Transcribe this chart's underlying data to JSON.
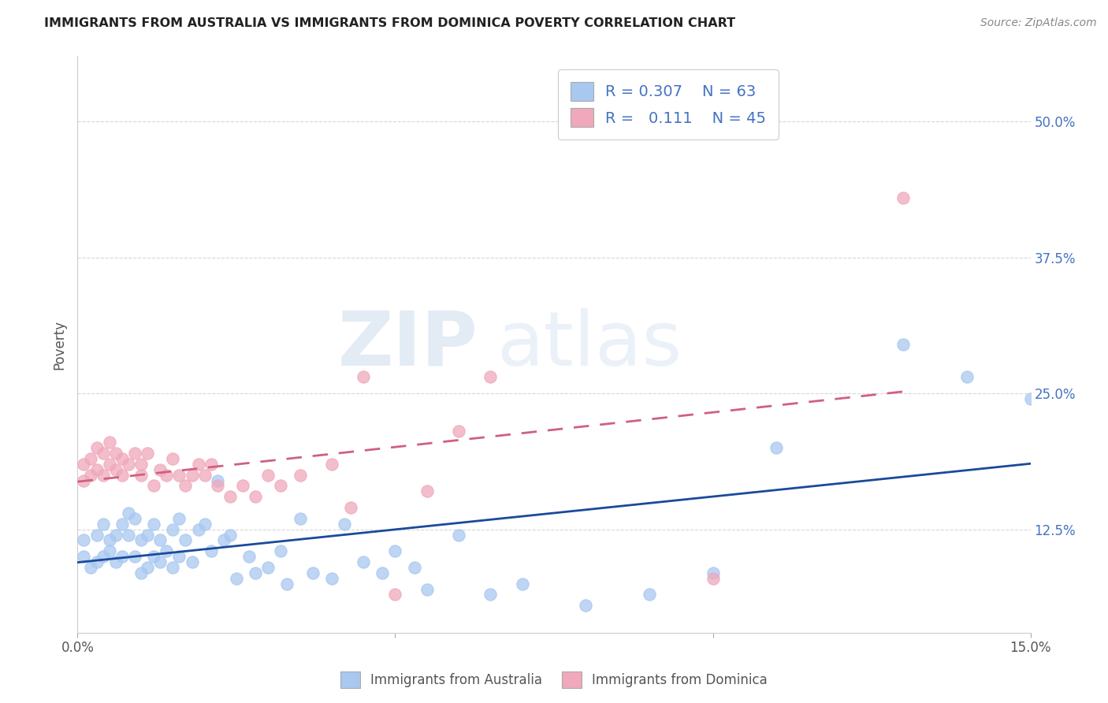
{
  "title": "IMMIGRANTS FROM AUSTRALIA VS IMMIGRANTS FROM DOMINICA POVERTY CORRELATION CHART",
  "source": "Source: ZipAtlas.com",
  "ylabel": "Poverty",
  "ytick_labels": [
    "12.5%",
    "25.0%",
    "37.5%",
    "50.0%"
  ],
  "ytick_values": [
    0.125,
    0.25,
    0.375,
    0.5
  ],
  "xlim": [
    0.0,
    0.15
  ],
  "ylim": [
    0.03,
    0.56
  ],
  "legend_R_australia": "0.307",
  "legend_N_australia": "63",
  "legend_R_dominica": "0.111",
  "legend_N_dominica": "45",
  "color_australia": "#a8c8f0",
  "color_dominica": "#f0a8bc",
  "line_color_australia": "#1a4a9a",
  "line_color_dominica": "#d06080",
  "watermark_zip": "ZIP",
  "watermark_atlas": "atlas",
  "australia_x": [
    0.001,
    0.001,
    0.002,
    0.003,
    0.003,
    0.004,
    0.004,
    0.005,
    0.005,
    0.006,
    0.006,
    0.007,
    0.007,
    0.008,
    0.008,
    0.009,
    0.009,
    0.01,
    0.01,
    0.011,
    0.011,
    0.012,
    0.012,
    0.013,
    0.013,
    0.014,
    0.015,
    0.015,
    0.016,
    0.016,
    0.017,
    0.018,
    0.019,
    0.02,
    0.021,
    0.022,
    0.023,
    0.024,
    0.025,
    0.027,
    0.028,
    0.03,
    0.032,
    0.033,
    0.035,
    0.037,
    0.04,
    0.042,
    0.045,
    0.048,
    0.05,
    0.053,
    0.055,
    0.06,
    0.065,
    0.07,
    0.08,
    0.09,
    0.1,
    0.11,
    0.13,
    0.14,
    0.15
  ],
  "australia_y": [
    0.1,
    0.115,
    0.09,
    0.095,
    0.12,
    0.1,
    0.13,
    0.105,
    0.115,
    0.095,
    0.12,
    0.1,
    0.13,
    0.12,
    0.14,
    0.1,
    0.135,
    0.085,
    0.115,
    0.09,
    0.12,
    0.1,
    0.13,
    0.095,
    0.115,
    0.105,
    0.09,
    0.125,
    0.1,
    0.135,
    0.115,
    0.095,
    0.125,
    0.13,
    0.105,
    0.17,
    0.115,
    0.12,
    0.08,
    0.1,
    0.085,
    0.09,
    0.105,
    0.075,
    0.135,
    0.085,
    0.08,
    0.13,
    0.095,
    0.085,
    0.105,
    0.09,
    0.07,
    0.12,
    0.065,
    0.075,
    0.055,
    0.065,
    0.085,
    0.2,
    0.295,
    0.265,
    0.245
  ],
  "dominica_x": [
    0.001,
    0.001,
    0.002,
    0.002,
    0.003,
    0.003,
    0.004,
    0.004,
    0.005,
    0.005,
    0.006,
    0.006,
    0.007,
    0.007,
    0.008,
    0.009,
    0.01,
    0.01,
    0.011,
    0.012,
    0.013,
    0.014,
    0.015,
    0.016,
    0.017,
    0.018,
    0.019,
    0.02,
    0.021,
    0.022,
    0.024,
    0.026,
    0.028,
    0.03,
    0.032,
    0.035,
    0.04,
    0.043,
    0.045,
    0.05,
    0.055,
    0.06,
    0.065,
    0.1,
    0.13
  ],
  "dominica_y": [
    0.17,
    0.185,
    0.175,
    0.19,
    0.18,
    0.2,
    0.175,
    0.195,
    0.185,
    0.205,
    0.18,
    0.195,
    0.175,
    0.19,
    0.185,
    0.195,
    0.175,
    0.185,
    0.195,
    0.165,
    0.18,
    0.175,
    0.19,
    0.175,
    0.165,
    0.175,
    0.185,
    0.175,
    0.185,
    0.165,
    0.155,
    0.165,
    0.155,
    0.175,
    0.165,
    0.175,
    0.185,
    0.145,
    0.265,
    0.065,
    0.16,
    0.215,
    0.265,
    0.08,
    0.43
  ]
}
